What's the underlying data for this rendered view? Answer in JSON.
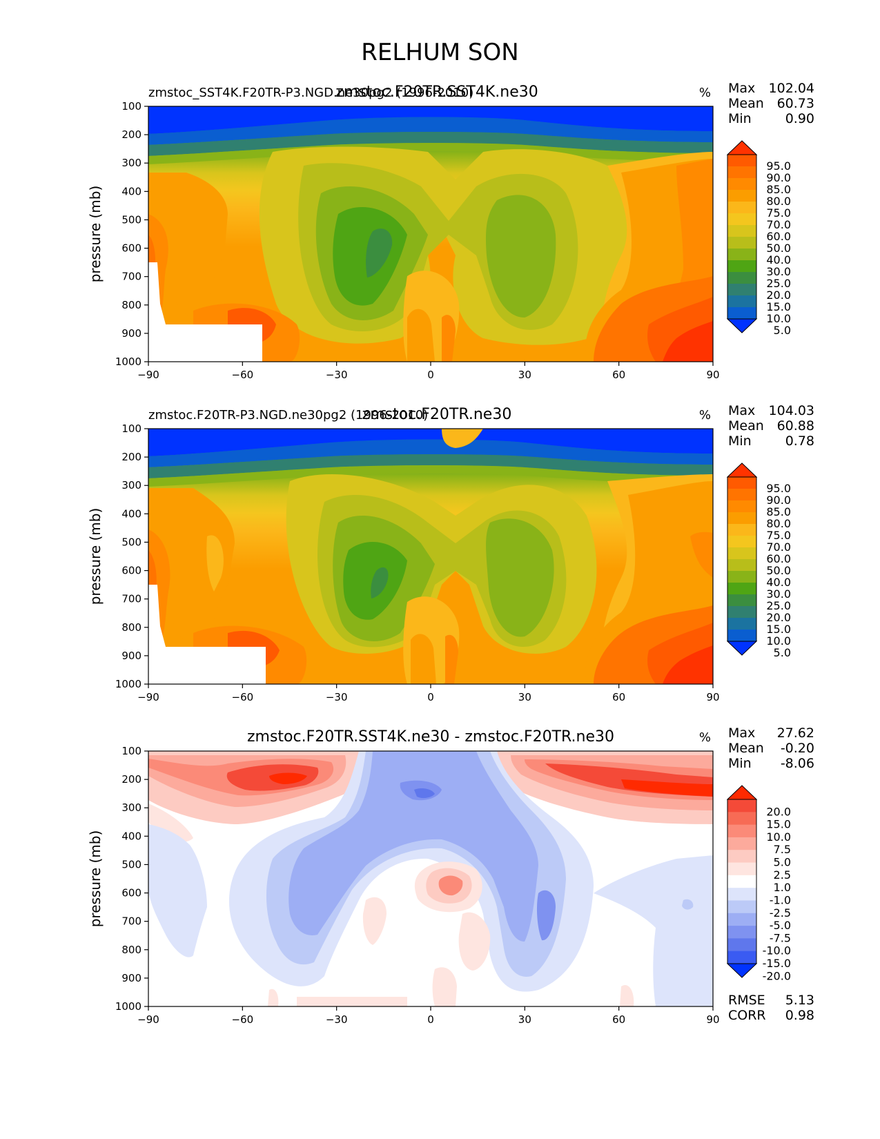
{
  "figure": {
    "title": "RELHUM SON"
  },
  "chart_data": [
    {
      "type": "heatmap",
      "title": "zmstoc.F20TR.SST4K.ne30",
      "case_label": "zmstoc_SST4K.F20TR-P3.NGD.ne30pg2 (1996-2010)",
      "units": "%",
      "xlabel": "",
      "ylabel": "pressure (mb)",
      "xticks": [
        "−90",
        "−60",
        "−30",
        "0",
        "30",
        "60",
        "90"
      ],
      "yticks": [
        "100",
        "200",
        "300",
        "400",
        "500",
        "600",
        "700",
        "800",
        "900",
        "1000"
      ],
      "xlim": [
        -90,
        90
      ],
      "ylim": [
        1000,
        100
      ],
      "stats": {
        "max_label": "Max",
        "max": "102.04",
        "mean_label": "Mean",
        "mean": "60.73",
        "min_label": "Min",
        "min": "0.90"
      },
      "colorbar_levels": [
        "95.0",
        "90.0",
        "85.0",
        "80.0",
        "75.0",
        "70.0",
        "60.0",
        "50.0",
        "40.0",
        "30.0",
        "25.0",
        "20.0",
        "15.0",
        "10.0",
        "5.0"
      ],
      "colorbar_colors": [
        "#ff3300",
        "#ff5a00",
        "#ff7400",
        "#ff8a00",
        "#fb9d00",
        "#fbb71a",
        "#f4c61e",
        "#d8c51c",
        "#b8be1a",
        "#89b318",
        "#4fa514",
        "#3b8e3f",
        "#308070",
        "#1b73a0",
        "#0a5ed0",
        "#0033ff"
      ]
    },
    {
      "type": "heatmap",
      "title": "zmstoc.F20TR.ne30",
      "case_label": "zmstoc.F20TR-P3.NGD.ne30pg2 (1996-2010)",
      "units": "%",
      "xlabel": "",
      "ylabel": "pressure (mb)",
      "xticks": [
        "−90",
        "−60",
        "−30",
        "0",
        "30",
        "60",
        "90"
      ],
      "yticks": [
        "100",
        "200",
        "300",
        "400",
        "500",
        "600",
        "700",
        "800",
        "900",
        "1000"
      ],
      "xlim": [
        -90,
        90
      ],
      "ylim": [
        1000,
        100
      ],
      "stats": {
        "max_label": "Max",
        "max": "104.03",
        "mean_label": "Mean",
        "mean": "60.88",
        "min_label": "Min",
        "min": "0.78"
      },
      "colorbar_levels": [
        "95.0",
        "90.0",
        "85.0",
        "80.0",
        "75.0",
        "70.0",
        "60.0",
        "50.0",
        "40.0",
        "30.0",
        "25.0",
        "20.0",
        "15.0",
        "10.0",
        "5.0"
      ],
      "colorbar_colors": [
        "#ff3300",
        "#ff5a00",
        "#ff7400",
        "#ff8a00",
        "#fb9d00",
        "#fbb71a",
        "#f4c61e",
        "#d8c51c",
        "#b8be1a",
        "#89b318",
        "#4fa514",
        "#3b8e3f",
        "#308070",
        "#1b73a0",
        "#0a5ed0",
        "#0033ff"
      ]
    },
    {
      "type": "heatmap",
      "title": "zmstoc.F20TR.SST4K.ne30 - zmstoc.F20TR.ne30",
      "units": "%",
      "xlabel": "",
      "ylabel": "pressure (mb)",
      "xticks": [
        "−90",
        "−60",
        "−30",
        "0",
        "30",
        "60",
        "90"
      ],
      "yticks": [
        "100",
        "200",
        "300",
        "400",
        "500",
        "600",
        "700",
        "800",
        "900",
        "1000"
      ],
      "xlim": [
        -90,
        90
      ],
      "ylim": [
        1000,
        100
      ],
      "stats": {
        "max_label": "Max",
        "max": "27.62",
        "mean_label": "Mean",
        "mean": "-0.20",
        "min_label": "Min",
        "min": "-8.06"
      },
      "colorbar_levels": [
        "20.0",
        "15.0",
        "10.0",
        "7.5",
        "5.0",
        "2.5",
        "1.0",
        "-1.0",
        "-2.5",
        "-5.0",
        "-7.5",
        "-10.0",
        "-15.0",
        "-20.0"
      ],
      "colorbar_colors": [
        "#ff2a00",
        "#f44a38",
        "#f76b55",
        "#fb8a78",
        "#fcaa9c",
        "#fdcbc2",
        "#fee5e0",
        "#ffffff",
        "#dde4fb",
        "#bccaf7",
        "#9daef4",
        "#7f92f0",
        "#5f77ec",
        "#3a5bf2",
        "#0033ff"
      ],
      "rmse_label": "RMSE",
      "rmse": "5.13",
      "corr_label": "CORR",
      "corr": "0.98"
    }
  ]
}
